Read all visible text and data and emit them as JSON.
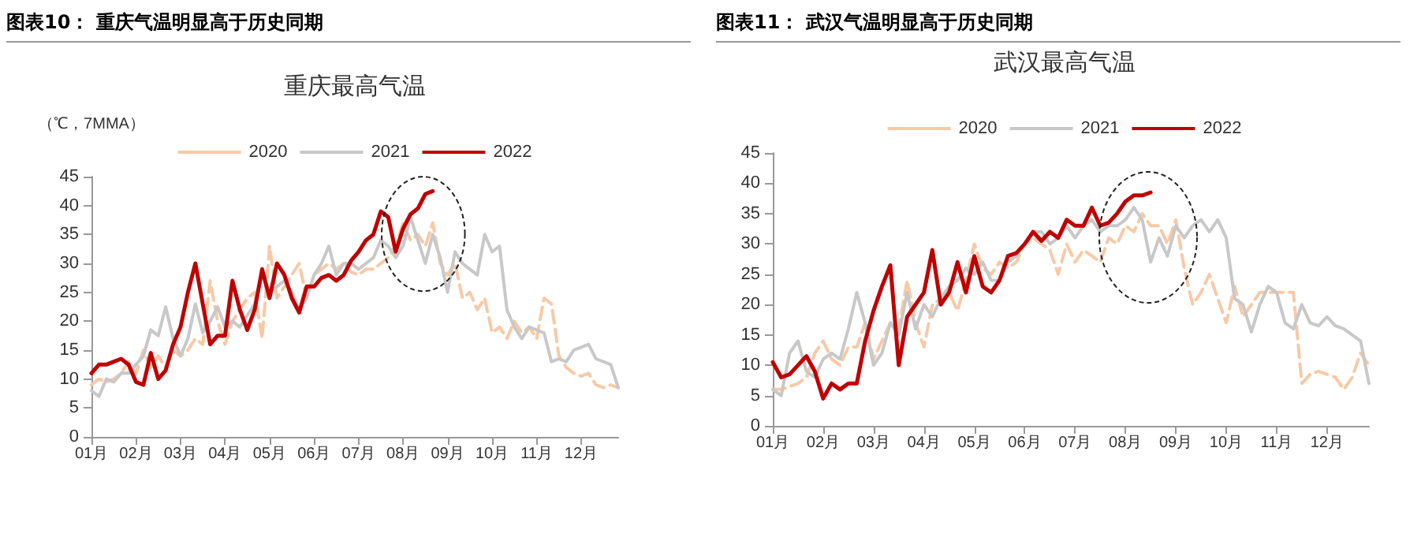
{
  "chart_data": [
    {
      "type": "line",
      "title": "图表10：  重庆气温明显高于历史同期",
      "subtitle": "重庆最高气温",
      "ylabel": "（℃，7MMA）",
      "categories": [
        "01月",
        null,
        null,
        null,
        null,
        null,
        "02月",
        null,
        null,
        null,
        null,
        null,
        "03月",
        null,
        null,
        null,
        null,
        null,
        "04月",
        null,
        null,
        null,
        null,
        null,
        "05月",
        null,
        null,
        null,
        null,
        null,
        "06月",
        null,
        null,
        null,
        null,
        null,
        "07月",
        null,
        null,
        null,
        null,
        null,
        "08月",
        null,
        null,
        null,
        null,
        null,
        "09月",
        null,
        null,
        null,
        null,
        null,
        "10月",
        null,
        null,
        null,
        null,
        null,
        "11月",
        null,
        null,
        null,
        null,
        null,
        "12月",
        null,
        null,
        null,
        null,
        null
      ],
      "ylim": [
        0,
        45
      ],
      "yticks": [
        0,
        5,
        10,
        15,
        20,
        25,
        30,
        35,
        40,
        45
      ],
      "grid": false,
      "legend": "top",
      "marker": "none",
      "series": [
        {
          "name": "2020",
          "color": "#f8c9a6",
          "line_style": "dashed",
          "values": [
            9,
            10,
            9.5,
            10,
            11,
            13,
            11,
            15,
            12,
            14,
            12,
            15,
            14,
            15,
            17,
            16,
            27,
            20,
            16,
            20,
            22,
            24,
            25,
            17,
            33,
            24,
            26,
            28,
            30,
            24,
            28,
            29,
            30,
            29,
            30,
            28.5,
            28,
            29,
            29,
            30,
            31,
            33,
            37,
            34,
            35,
            33,
            37,
            30,
            28,
            30,
            24,
            25,
            22,
            24,
            18,
            19,
            17,
            20,
            18,
            19,
            17,
            24,
            23,
            14,
            12,
            11,
            10.5,
            11,
            9,
            8.5,
            9,
            8.5
          ]
        },
        {
          "name": "2021",
          "color": "#c8c8c8",
          "line_style": "solid",
          "values": [
            8,
            7,
            10,
            9.5,
            11,
            11,
            12.5,
            14,
            18.5,
            17.5,
            22.5,
            17,
            14,
            17,
            23,
            18,
            20,
            22.5,
            19,
            20,
            19,
            21,
            23,
            28,
            25,
            26,
            27,
            25,
            22,
            24,
            28,
            30,
            33,
            28,
            30,
            30,
            29,
            30,
            31,
            34,
            33,
            31,
            33,
            38,
            34,
            30,
            35,
            31,
            25,
            32,
            30,
            29,
            28,
            35,
            32,
            33,
            22,
            19,
            17,
            19,
            18.5,
            18,
            13,
            13.5,
            13,
            15,
            15.5,
            16,
            13.5,
            13,
            12.5,
            8.5
          ]
        },
        {
          "name": "2022",
          "color": "#c00000",
          "line_style": "solid",
          "values": [
            11,
            12.5,
            12.5,
            13,
            13.5,
            12.5,
            9.5,
            9,
            14.5,
            10,
            11.5,
            16,
            19,
            25,
            30,
            23,
            16,
            17.5,
            17.5,
            27,
            22,
            18.5,
            22,
            29,
            24,
            30,
            28,
            24,
            21.5,
            26,
            26,
            27.5,
            28,
            27,
            28,
            30.5,
            32,
            34,
            35,
            39,
            38,
            32,
            36,
            38.5,
            39.5,
            42,
            42.5,
            null,
            null,
            null,
            null,
            null,
            null,
            null,
            null,
            null,
            null,
            null,
            null,
            null,
            null,
            null,
            null,
            null,
            null,
            null,
            null,
            null,
            null,
            null,
            null,
            null
          ]
        }
      ]
    },
    {
      "type": "line",
      "title": "图表11：  武汉气温明显高于历史同期",
      "subtitle": "武汉最高气温",
      "categories": [
        "01月",
        null,
        null,
        null,
        null,
        null,
        "02月",
        null,
        null,
        null,
        null,
        null,
        "03月",
        null,
        null,
        null,
        null,
        null,
        "04月",
        null,
        null,
        null,
        null,
        null,
        "05月",
        null,
        null,
        null,
        null,
        null,
        "06月",
        null,
        null,
        null,
        null,
        null,
        "07月",
        null,
        null,
        null,
        null,
        null,
        "08月",
        null,
        null,
        null,
        null,
        null,
        "09月",
        null,
        null,
        null,
        null,
        null,
        "10月",
        null,
        null,
        null,
        null,
        null,
        "11月",
        null,
        null,
        null,
        null,
        null,
        "12月",
        null,
        null,
        null,
        null,
        null
      ],
      "ylim": [
        0,
        45
      ],
      "yticks": [
        0,
        5,
        10,
        15,
        20,
        25,
        30,
        35,
        40,
        45
      ],
      "grid": false,
      "legend": "top",
      "marker": "none",
      "series": [
        {
          "name": "2020",
          "color": "#f8c9a6",
          "line_style": "dashed",
          "values": [
            6,
            6,
            6.5,
            7,
            8,
            12,
            14,
            11,
            10,
            13,
            13,
            17,
            11,
            14,
            17,
            16,
            24,
            17,
            13,
            20,
            21,
            22,
            19,
            24,
            30,
            26,
            25,
            27,
            26,
            27,
            30,
            31,
            30,
            29,
            25,
            30,
            27,
            29,
            28,
            27,
            31,
            30,
            33,
            32,
            35,
            33,
            33,
            30,
            34,
            26,
            20,
            22,
            25,
            21,
            17,
            23,
            18,
            20,
            22,
            22,
            22,
            22,
            22,
            7,
            8.5,
            9,
            8.5,
            8,
            6,
            8,
            12,
            10
          ]
        },
        {
          "name": "2021",
          "color": "#c8c8c8",
          "line_style": "solid",
          "values": [
            6,
            5,
            12,
            14,
            9,
            8,
            11,
            12,
            11,
            16,
            22,
            17,
            10,
            12,
            17,
            15,
            22,
            16,
            20,
            18,
            21,
            23,
            24,
            26,
            25,
            27,
            24,
            24,
            27,
            28,
            30,
            32,
            32,
            30,
            31,
            33,
            31,
            33,
            34,
            32,
            33,
            33,
            34,
            36,
            34,
            27,
            31,
            28,
            33,
            31,
            33,
            34,
            32,
            34,
            31,
            21,
            20,
            15.5,
            20,
            23,
            22,
            17,
            16,
            20,
            17,
            16.5,
            18,
            16.5,
            16,
            15,
            14,
            7
          ]
        },
        {
          "name": "2022",
          "color": "#c00000",
          "line_style": "solid",
          "values": [
            10.5,
            8,
            8.5,
            10,
            11.5,
            9,
            4.5,
            7,
            6,
            7,
            7,
            14,
            19,
            23,
            26.5,
            10,
            18,
            20,
            22,
            29,
            20,
            22,
            27,
            22,
            28,
            23,
            22,
            24,
            28,
            28.5,
            30,
            32,
            30.5,
            32,
            31,
            34,
            33,
            33,
            36,
            33,
            33.5,
            35,
            37,
            38,
            38,
            38.5,
            null,
            null,
            null,
            null,
            null,
            null,
            null,
            null,
            null,
            null,
            null,
            null,
            null,
            null,
            null,
            null,
            null,
            null,
            null,
            null,
            null,
            null,
            null,
            null,
            null,
            null
          ]
        }
      ]
    }
  ]
}
